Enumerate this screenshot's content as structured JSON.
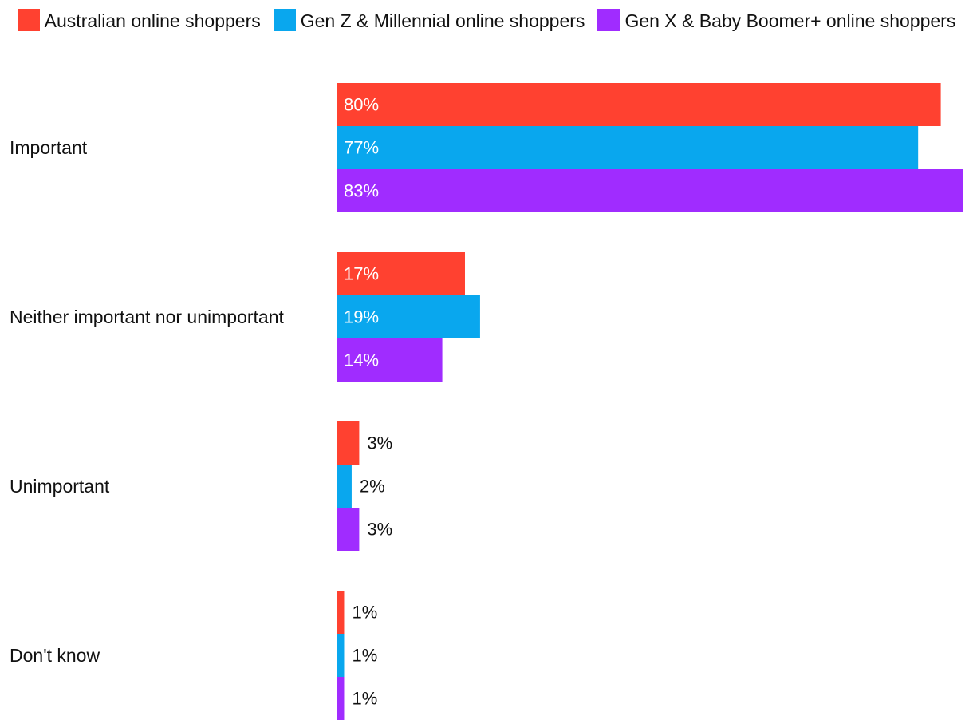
{
  "chart_data": {
    "type": "bar",
    "orientation": "horizontal",
    "categories": [
      "Important",
      "Neither important nor unimportant",
      "Unimportant",
      "Don't know"
    ],
    "series": [
      {
        "name": "Australian online shoppers",
        "values": [
          80,
          17,
          3,
          1
        ],
        "color": "#ff4130"
      },
      {
        "name": "Gen Z & Millennial online shoppers",
        "values": [
          77,
          19,
          2,
          1
        ],
        "color": "#09a7ee"
      },
      {
        "name": "Gen X & Baby Boomer+ online shoppers",
        "values": [
          83,
          14,
          3,
          1
        ],
        "color": "#a02cff"
      }
    ],
    "value_format": "{v}%",
    "xlim": [
      0,
      83
    ],
    "grid": false,
    "legend_position": "top-center",
    "title": "",
    "xlabel": "",
    "ylabel": ""
  },
  "labels": {
    "inside_text_color": "#ffffff",
    "outside_text_color": "#111111"
  }
}
